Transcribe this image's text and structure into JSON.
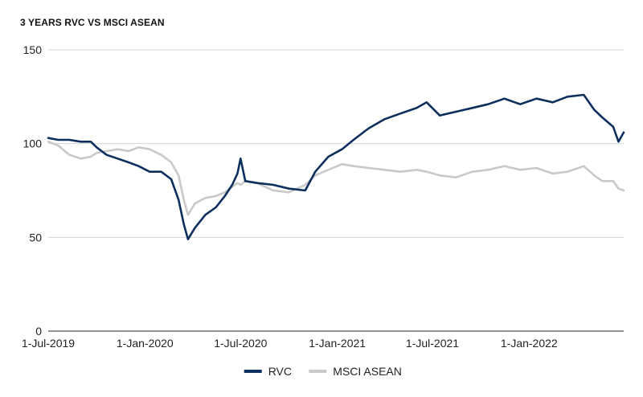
{
  "chart_data": {
    "type": "line",
    "title": "3 YEARS RVC VS MSCI ASEAN",
    "xlabel": "",
    "ylabel": "",
    "ylim": [
      0,
      150
    ],
    "yticks": [
      0,
      50,
      100,
      150
    ],
    "grid": true,
    "legend_position": "bottom-center",
    "x_range": [
      "2019-07-01",
      "2022-06-30"
    ],
    "x_tick_labels": [
      "1-Jul-2019",
      "1-Jan-2020",
      "1-Jul-2020",
      "1-Jan-2021",
      "1-Jul-2021",
      "1-Jan-2022"
    ],
    "x_tick_dates": [
      "2019-07-01",
      "2020-01-01",
      "2020-07-01",
      "2021-01-01",
      "2021-07-01",
      "2022-01-01"
    ],
    "series": [
      {
        "name": "RVC",
        "color": "#0d2f5e",
        "points": [
          [
            "2019-07-01",
            103
          ],
          [
            "2019-07-20",
            102
          ],
          [
            "2019-08-10",
            102
          ],
          [
            "2019-09-01",
            101
          ],
          [
            "2019-09-20",
            101
          ],
          [
            "2019-10-01",
            98
          ],
          [
            "2019-10-20",
            94
          ],
          [
            "2019-11-10",
            92
          ],
          [
            "2019-12-01",
            90
          ],
          [
            "2019-12-20",
            88
          ],
          [
            "2020-01-10",
            85
          ],
          [
            "2020-02-01",
            85
          ],
          [
            "2020-02-20",
            81
          ],
          [
            "2020-03-05",
            70
          ],
          [
            "2020-03-15",
            57
          ],
          [
            "2020-03-23",
            49
          ],
          [
            "2020-04-05",
            55
          ],
          [
            "2020-04-25",
            62
          ],
          [
            "2020-05-15",
            66
          ],
          [
            "2020-06-01",
            72
          ],
          [
            "2020-06-15",
            78
          ],
          [
            "2020-06-25",
            84
          ],
          [
            "2020-07-01",
            92
          ],
          [
            "2020-07-10",
            80
          ],
          [
            "2020-08-01",
            79
          ],
          [
            "2020-09-01",
            78
          ],
          [
            "2020-10-01",
            76
          ],
          [
            "2020-11-01",
            75
          ],
          [
            "2020-11-20",
            85
          ],
          [
            "2020-12-15",
            93
          ],
          [
            "2021-01-10",
            97
          ],
          [
            "2021-02-01",
            102
          ],
          [
            "2021-03-01",
            108
          ],
          [
            "2021-04-01",
            113
          ],
          [
            "2021-05-01",
            116
          ],
          [
            "2021-06-01",
            119
          ],
          [
            "2021-06-20",
            122
          ],
          [
            "2021-07-15",
            115
          ],
          [
            "2021-08-15",
            117
          ],
          [
            "2021-09-15",
            119
          ],
          [
            "2021-10-15",
            121
          ],
          [
            "2021-11-15",
            124
          ],
          [
            "2021-12-15",
            121
          ],
          [
            "2022-01-15",
            124
          ],
          [
            "2022-02-15",
            122
          ],
          [
            "2022-03-15",
            125
          ],
          [
            "2022-04-15",
            126
          ],
          [
            "2022-05-05",
            118
          ],
          [
            "2022-05-20",
            114
          ],
          [
            "2022-06-10",
            109
          ],
          [
            "2022-06-20",
            101
          ],
          [
            "2022-06-30",
            106
          ]
        ]
      },
      {
        "name": "MSCI ASEAN",
        "color": "#c9c9c9",
        "points": [
          [
            "2019-07-01",
            101
          ],
          [
            "2019-07-20",
            99
          ],
          [
            "2019-08-10",
            94
          ],
          [
            "2019-09-01",
            92
          ],
          [
            "2019-09-20",
            93
          ],
          [
            "2019-10-01",
            95
          ],
          [
            "2019-10-20",
            96
          ],
          [
            "2019-11-10",
            97
          ],
          [
            "2019-12-01",
            96
          ],
          [
            "2019-12-20",
            98
          ],
          [
            "2020-01-10",
            97
          ],
          [
            "2020-02-01",
            94
          ],
          [
            "2020-02-20",
            90
          ],
          [
            "2020-03-05",
            83
          ],
          [
            "2020-03-15",
            70
          ],
          [
            "2020-03-23",
            62
          ],
          [
            "2020-04-05",
            68
          ],
          [
            "2020-04-25",
            71
          ],
          [
            "2020-05-15",
            72
          ],
          [
            "2020-06-01",
            74
          ],
          [
            "2020-06-15",
            77
          ],
          [
            "2020-06-25",
            79
          ],
          [
            "2020-07-01",
            78
          ],
          [
            "2020-07-10",
            80
          ],
          [
            "2020-08-01",
            79
          ],
          [
            "2020-09-01",
            75
          ],
          [
            "2020-10-01",
            74
          ],
          [
            "2020-11-01",
            78
          ],
          [
            "2020-11-20",
            83
          ],
          [
            "2020-12-15",
            86
          ],
          [
            "2021-01-10",
            89
          ],
          [
            "2021-02-01",
            88
          ],
          [
            "2021-03-01",
            87
          ],
          [
            "2021-04-01",
            86
          ],
          [
            "2021-05-01",
            85
          ],
          [
            "2021-06-01",
            86
          ],
          [
            "2021-06-20",
            85
          ],
          [
            "2021-07-15",
            83
          ],
          [
            "2021-08-15",
            82
          ],
          [
            "2021-09-15",
            85
          ],
          [
            "2021-10-15",
            86
          ],
          [
            "2021-11-15",
            88
          ],
          [
            "2021-12-15",
            86
          ],
          [
            "2022-01-15",
            87
          ],
          [
            "2022-02-15",
            84
          ],
          [
            "2022-03-15",
            85
          ],
          [
            "2022-04-15",
            88
          ],
          [
            "2022-05-05",
            83
          ],
          [
            "2022-05-20",
            80
          ],
          [
            "2022-06-10",
            80
          ],
          [
            "2022-06-20",
            76
          ],
          [
            "2022-06-30",
            75
          ]
        ]
      }
    ]
  }
}
